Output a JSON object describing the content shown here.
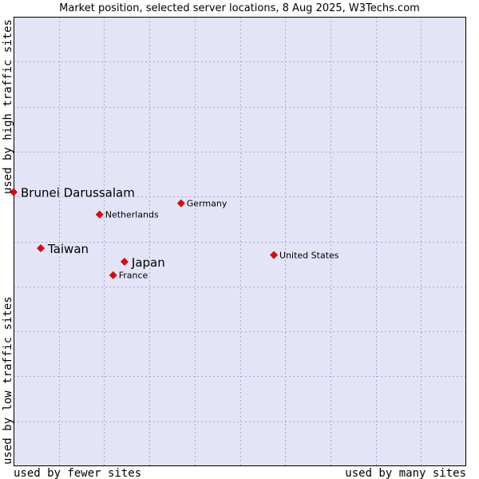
{
  "chart_data": {
    "type": "scatter",
    "title": "Market position, selected server locations, 8 Aug 2025, W3Techs.com",
    "xlabel_left": "used by fewer sites",
    "xlabel_right": "used by many sites",
    "ylabel_bottom": "used by low traffic sites",
    "ylabel_top": "used by high traffic sites",
    "xlim": [
      0,
      10
    ],
    "ylim": [
      0,
      10
    ],
    "grid": true,
    "colors": {
      "plot_bg": "#e4e4f8",
      "point": "#ee0000",
      "frame": "#000000"
    },
    "points": [
      {
        "name": "Brunei Darussalam",
        "x": 0.0,
        "y": 6.1,
        "emphasis": true
      },
      {
        "name": "Germany",
        "x": 3.7,
        "y": 5.85,
        "emphasis": false
      },
      {
        "name": "Netherlands",
        "x": 1.9,
        "y": 5.6,
        "emphasis": false
      },
      {
        "name": "Taiwan",
        "x": 0.6,
        "y": 4.85,
        "emphasis": true
      },
      {
        "name": "United States",
        "x": 5.75,
        "y": 4.7,
        "emphasis": false
      },
      {
        "name": "Japan",
        "x": 2.45,
        "y": 4.55,
        "emphasis": true
      },
      {
        "name": "France",
        "x": 2.2,
        "y": 4.25,
        "emphasis": false
      }
    ]
  }
}
